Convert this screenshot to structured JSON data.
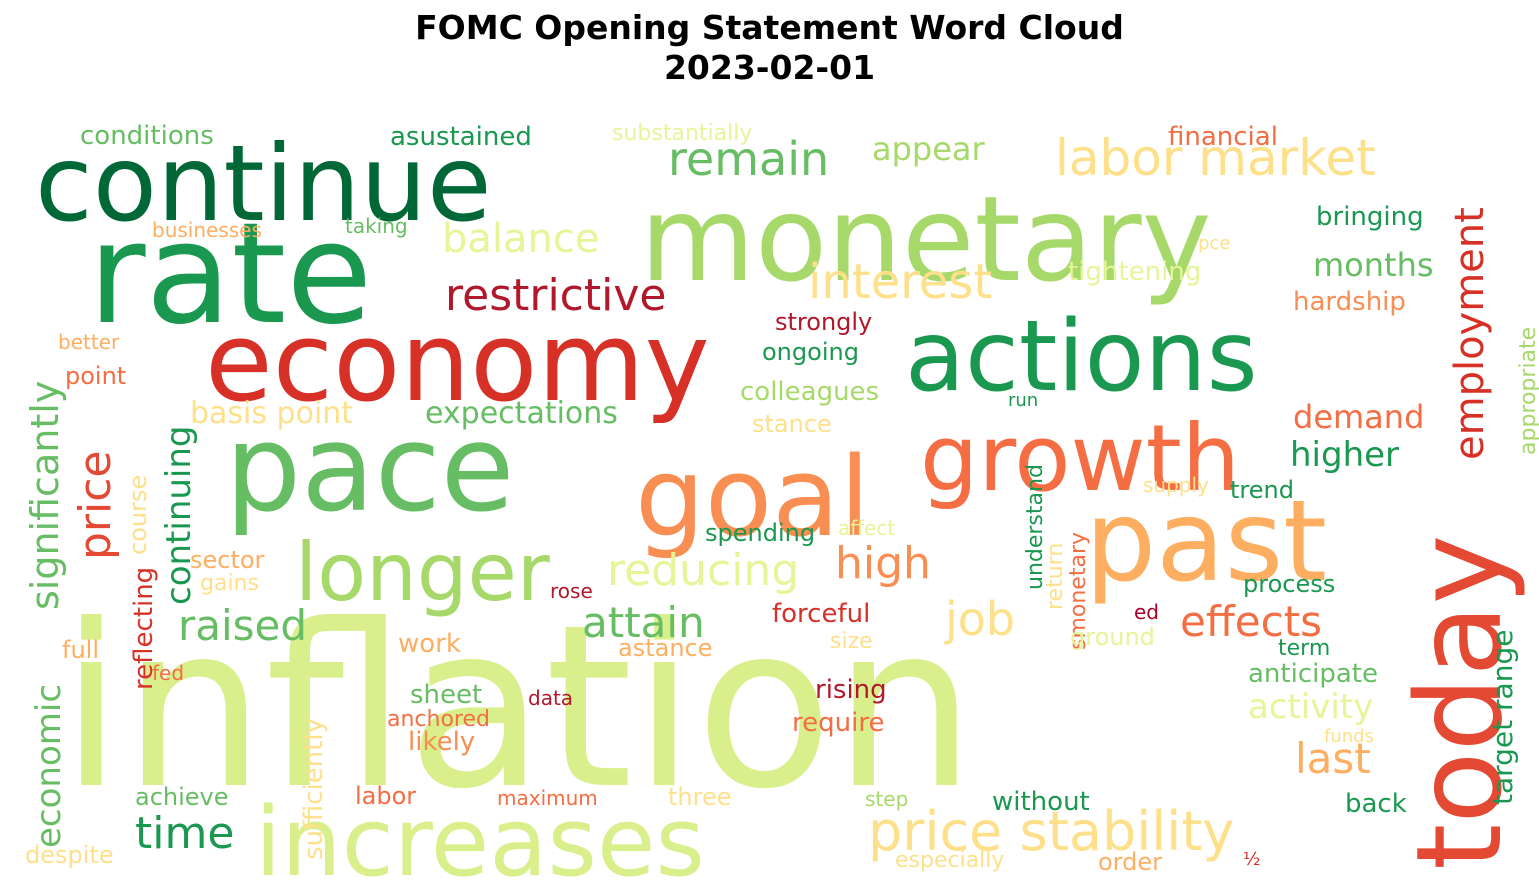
{
  "title_line1": "FOMC Opening Statement Word Cloud",
  "title_line2": "2023-02-01",
  "colors": {
    "dark_green": "#006837",
    "green": "#1a9850",
    "mid_green": "#66bd63",
    "light_green": "#a6d96a",
    "yellow_green": "#d9ef8b",
    "pale_yellow": "#fee08b",
    "light_orange": "#fdae61",
    "orange": "#f46d43",
    "red": "#d73027",
    "dark_red": "#a50026"
  },
  "words": [
    {
      "text": "inflation",
      "color": "#d9ef8b"
    },
    {
      "text": "continue",
      "color": "#006837"
    },
    {
      "text": "rate",
      "color": "#1a9850"
    },
    {
      "text": "monetary",
      "color": "#a6d96a"
    },
    {
      "text": "economy",
      "color": "#d73027"
    },
    {
      "text": "actions",
      "color": "#1a9850"
    },
    {
      "text": "pace",
      "color": "#66bd63"
    },
    {
      "text": "goal",
      "color": "#f98e52"
    },
    {
      "text": "growth",
      "color": "#f46d43"
    },
    {
      "text": "past",
      "color": "#fdae61"
    },
    {
      "text": "today",
      "color": "#e34933"
    },
    {
      "text": "increases",
      "color": "#d9ef8b"
    },
    {
      "text": "longer",
      "color": "#a6d96a"
    },
    {
      "text": "price stability",
      "color": "#fee08b"
    },
    {
      "text": "labor market",
      "color": "#fee08b"
    },
    {
      "text": "remain",
      "color": "#66bd63"
    },
    {
      "text": "restrictive",
      "color": "#b2182b"
    },
    {
      "text": "interest",
      "color": "#fee08b"
    },
    {
      "text": "balance",
      "color": "#e6f598"
    },
    {
      "text": "employment",
      "color": "#d73027"
    },
    {
      "text": "significantly",
      "color": "#66bd63"
    },
    {
      "text": "economic",
      "color": "#66bd63"
    },
    {
      "text": "price",
      "color": "#e34933"
    },
    {
      "text": "continuing",
      "color": "#1a9850"
    },
    {
      "text": "time",
      "color": "#1a9850"
    },
    {
      "text": "raised",
      "color": "#66bd63"
    },
    {
      "text": "attain",
      "color": "#66bd63"
    },
    {
      "text": "job",
      "color": "#fee08b"
    },
    {
      "text": "effects",
      "color": "#f46d43"
    },
    {
      "text": "high",
      "color": "#f98e52"
    },
    {
      "text": "reducing",
      "color": "#e6f598"
    },
    {
      "text": "last",
      "color": "#fdae61"
    },
    {
      "text": "activity",
      "color": "#e6f598"
    },
    {
      "text": "appear",
      "color": "#a6d96a"
    },
    {
      "text": "conditions",
      "color": "#66bd63"
    },
    {
      "text": "asustained",
      "color": "#1a9850"
    },
    {
      "text": "substantially",
      "color": "#e6f598"
    },
    {
      "text": "financial",
      "color": "#f46d43"
    },
    {
      "text": "bringing",
      "color": "#1a9850"
    },
    {
      "text": "months",
      "color": "#66bd63"
    },
    {
      "text": "tightening",
      "color": "#e6f598"
    },
    {
      "text": "hardship",
      "color": "#f98e52"
    },
    {
      "text": "demand",
      "color": "#f46d43"
    },
    {
      "text": "higher",
      "color": "#1a9850"
    },
    {
      "text": "appropriate",
      "color": "#a6d96a"
    },
    {
      "text": "target range",
      "color": "#1a9850"
    },
    {
      "text": "trend",
      "color": "#1a9850"
    },
    {
      "text": "supply",
      "color": "#fee08b"
    },
    {
      "text": "process",
      "color": "#1a9850"
    },
    {
      "text": "term",
      "color": "#1a9850"
    },
    {
      "text": "anticipate",
      "color": "#66bd63"
    },
    {
      "text": "funds",
      "color": "#fee08b"
    },
    {
      "text": "back",
      "color": "#1a9850"
    },
    {
      "text": "order",
      "color": "#fdae61"
    },
    {
      "text": "½",
      "color": "#d73027"
    },
    {
      "text": "without",
      "color": "#1a9850"
    },
    {
      "text": "step",
      "color": "#a6d96a"
    },
    {
      "text": "especially",
      "color": "#fee08b"
    },
    {
      "text": "three",
      "color": "#fee08b"
    },
    {
      "text": "maximum",
      "color": "#f46d43"
    },
    {
      "text": "labor",
      "color": "#f46d43"
    },
    {
      "text": "achieve",
      "color": "#66bd63"
    },
    {
      "text": "despite",
      "color": "#fee08b"
    },
    {
      "text": "sufficiently",
      "color": "#fee08b"
    },
    {
      "text": "reflecting",
      "color": "#d73027"
    },
    {
      "text": "course",
      "color": "#fee08b"
    },
    {
      "text": "full",
      "color": "#fdae61"
    },
    {
      "text": "fed",
      "color": "#f46d43"
    },
    {
      "text": "sector",
      "color": "#fdae61"
    },
    {
      "text": "gains",
      "color": "#fee08b"
    },
    {
      "text": "work",
      "color": "#fdae61"
    },
    {
      "text": "rose",
      "color": "#b2182b"
    },
    {
      "text": "sheet",
      "color": "#66bd63"
    },
    {
      "text": "anchored",
      "color": "#f46d43"
    },
    {
      "text": "likely",
      "color": "#f98e52"
    },
    {
      "text": "data",
      "color": "#b2182b"
    },
    {
      "text": "rising",
      "color": "#b2182b"
    },
    {
      "text": "require",
      "color": "#f46d43"
    },
    {
      "text": "forceful",
      "color": "#d73027"
    },
    {
      "text": "size",
      "color": "#fee08b"
    },
    {
      "text": "astance",
      "color": "#fdae61"
    },
    {
      "text": "spending",
      "color": "#1a9850"
    },
    {
      "text": "affect",
      "color": "#e6f598"
    },
    {
      "text": "understand",
      "color": "#1a9850"
    },
    {
      "text": "return",
      "color": "#fee08b"
    },
    {
      "text": "smonetary",
      "color": "#f46d43"
    },
    {
      "text": "ground",
      "color": "#e6f598"
    },
    {
      "text": "ed",
      "color": "#a50026"
    },
    {
      "text": "run",
      "color": "#1a9850"
    },
    {
      "text": "stance",
      "color": "#fee08b"
    },
    {
      "text": "colleagues",
      "color": "#a6d96a"
    },
    {
      "text": "ongoing",
      "color": "#1a9850"
    },
    {
      "text": "strongly",
      "color": "#b2182b"
    },
    {
      "text": "expectations",
      "color": "#66bd63"
    },
    {
      "text": "basis point",
      "color": "#fee08b"
    },
    {
      "text": "point",
      "color": "#f46d43"
    },
    {
      "text": "better",
      "color": "#fdae61"
    },
    {
      "text": "businesses",
      "color": "#fdae61"
    },
    {
      "text": "taking",
      "color": "#66bd63"
    },
    {
      "text": "pce",
      "color": "#fee08b"
    }
  ]
}
